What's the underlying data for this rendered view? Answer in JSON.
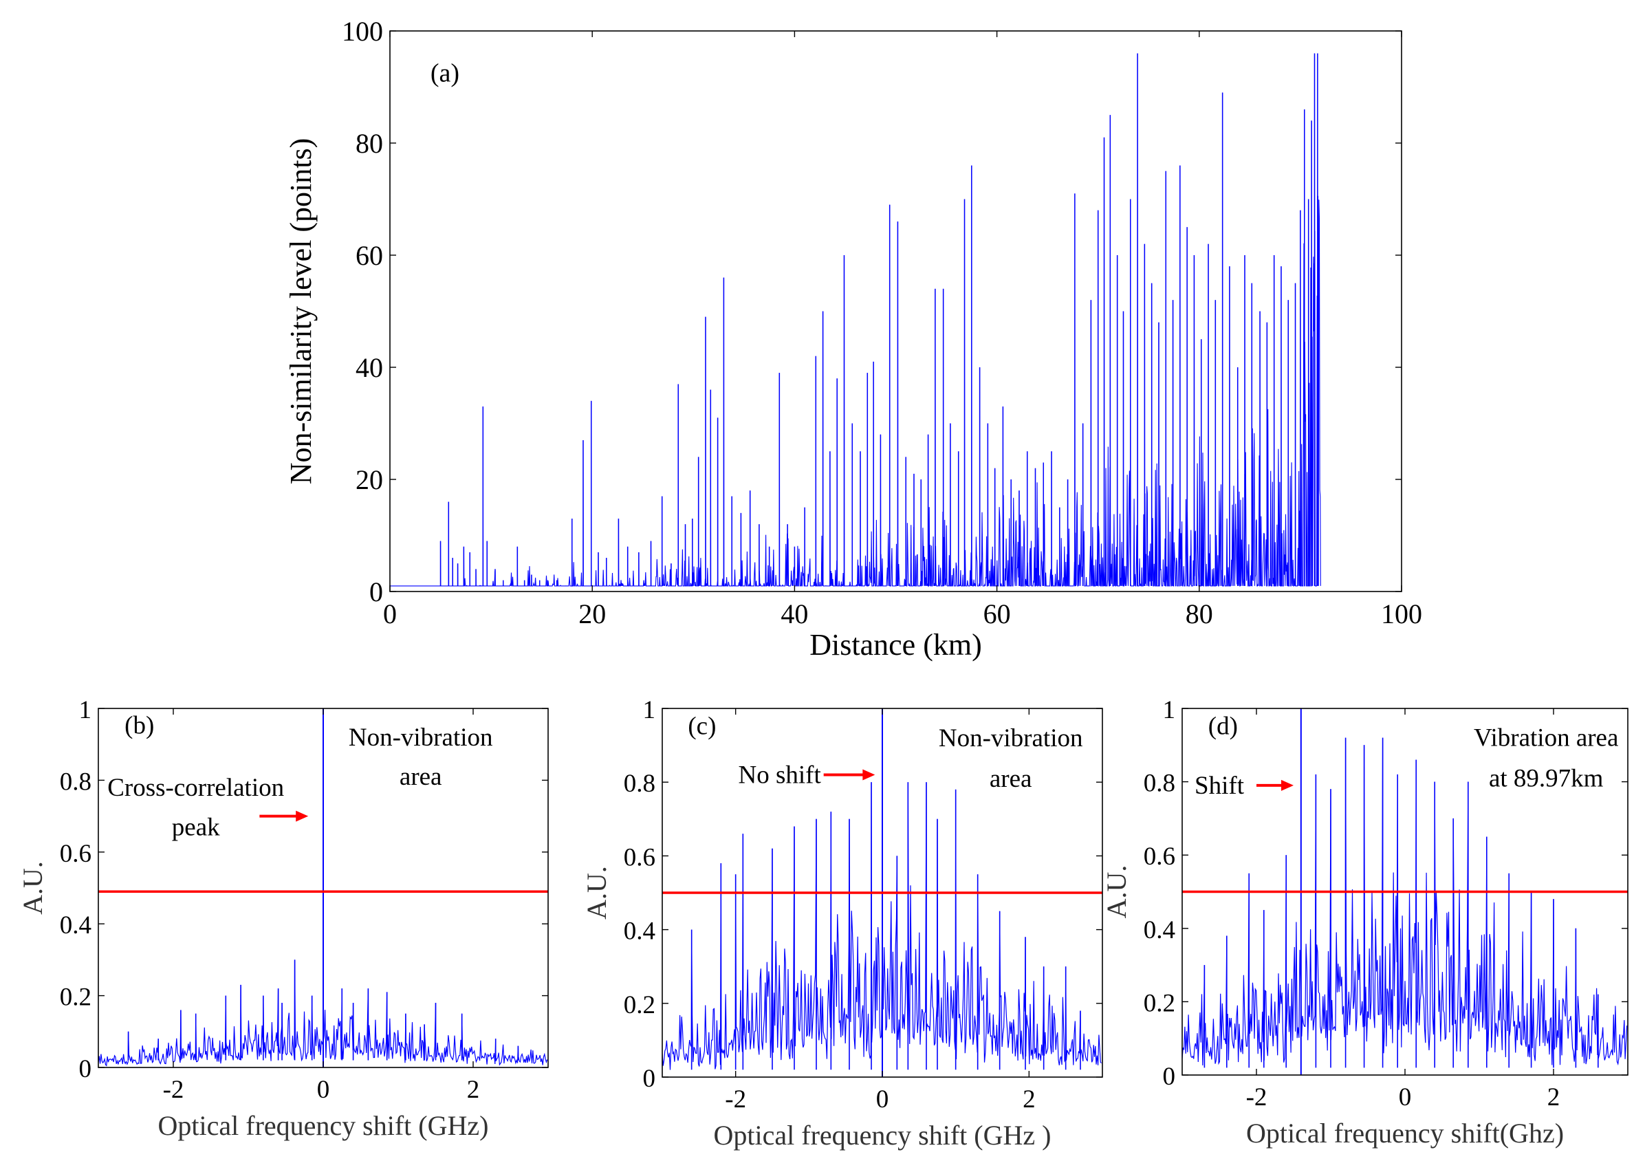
{
  "chart_data": [
    {
      "id": "a",
      "type": "line",
      "panel_label": "(a)",
      "xlabel": "Distance (km)",
      "ylabel": "Non-similarity level (points)",
      "xlim": [
        0,
        100
      ],
      "ylim": [
        0,
        100
      ],
      "xticks": [
        0,
        20,
        40,
        60,
        80,
        100
      ],
      "yticks": [
        0,
        20,
        40,
        60,
        80,
        100
      ],
      "grid": false,
      "baseline": 1,
      "data_end_km": 92,
      "series": [
        {
          "color": "#0000ff",
          "peaks": [
            {
              "x": 5.0,
              "y": 9
            },
            {
              "x": 5.8,
              "y": 16
            },
            {
              "x": 6.2,
              "y": 6
            },
            {
              "x": 6.7,
              "y": 5
            },
            {
              "x": 7.3,
              "y": 8
            },
            {
              "x": 7.9,
              "y": 7
            },
            {
              "x": 8.5,
              "y": 4
            },
            {
              "x": 9.2,
              "y": 33
            },
            {
              "x": 9.6,
              "y": 9
            },
            {
              "x": 10.4,
              "y": 4
            },
            {
              "x": 11.2,
              "y": 2
            },
            {
              "x": 12.6,
              "y": 8
            },
            {
              "x": 13.3,
              "y": 2
            },
            {
              "x": 14.0,
              "y": 3
            },
            {
              "x": 14.8,
              "y": 2
            },
            {
              "x": 15.6,
              "y": 2
            },
            {
              "x": 16.5,
              "y": 2
            },
            {
              "x": 18.0,
              "y": 13
            },
            {
              "x": 19.1,
              "y": 27
            },
            {
              "x": 19.9,
              "y": 34
            },
            {
              "x": 20.6,
              "y": 7
            },
            {
              "x": 21.4,
              "y": 6
            },
            {
              "x": 22.6,
              "y": 13
            },
            {
              "x": 23.5,
              "y": 8
            },
            {
              "x": 24.6,
              "y": 7
            },
            {
              "x": 25.8,
              "y": 9
            },
            {
              "x": 26.9,
              "y": 17
            },
            {
              "x": 27.8,
              "y": 5
            },
            {
              "x": 28.5,
              "y": 37
            },
            {
              "x": 29.2,
              "y": 12
            },
            {
              "x": 29.9,
              "y": 13
            },
            {
              "x": 30.5,
              "y": 24
            },
            {
              "x": 31.2,
              "y": 49
            },
            {
              "x": 31.7,
              "y": 36
            },
            {
              "x": 32.4,
              "y": 31
            },
            {
              "x": 33.0,
              "y": 56
            },
            {
              "x": 33.8,
              "y": 17
            },
            {
              "x": 34.7,
              "y": 14
            },
            {
              "x": 35.6,
              "y": 18
            },
            {
              "x": 36.5,
              "y": 12
            },
            {
              "x": 37.5,
              "y": 8
            },
            {
              "x": 38.5,
              "y": 39
            },
            {
              "x": 39.3,
              "y": 12
            },
            {
              "x": 40.0,
              "y": 8
            },
            {
              "x": 41.0,
              "y": 15
            },
            {
              "x": 42.1,
              "y": 42
            },
            {
              "x": 42.8,
              "y": 50
            },
            {
              "x": 43.5,
              "y": 25
            },
            {
              "x": 44.2,
              "y": 38
            },
            {
              "x": 44.9,
              "y": 60
            },
            {
              "x": 45.7,
              "y": 30
            },
            {
              "x": 46.5,
              "y": 25
            },
            {
              "x": 47.2,
              "y": 39
            },
            {
              "x": 47.8,
              "y": 41
            },
            {
              "x": 48.5,
              "y": 28
            },
            {
              "x": 49.4,
              "y": 69
            },
            {
              "x": 50.2,
              "y": 66
            },
            {
              "x": 51.0,
              "y": 24
            },
            {
              "x": 51.8,
              "y": 21
            },
            {
              "x": 52.5,
              "y": 20
            },
            {
              "x": 53.2,
              "y": 28
            },
            {
              "x": 53.9,
              "y": 54
            },
            {
              "x": 54.7,
              "y": 54
            },
            {
              "x": 55.4,
              "y": 30
            },
            {
              "x": 56.2,
              "y": 25
            },
            {
              "x": 56.8,
              "y": 70
            },
            {
              "x": 57.5,
              "y": 76
            },
            {
              "x": 58.3,
              "y": 40
            },
            {
              "x": 59.1,
              "y": 30
            },
            {
              "x": 59.8,
              "y": 22
            },
            {
              "x": 60.6,
              "y": 33
            },
            {
              "x": 61.4,
              "y": 20
            },
            {
              "x": 62.2,
              "y": 18
            },
            {
              "x": 63.0,
              "y": 25
            },
            {
              "x": 63.8,
              "y": 22
            },
            {
              "x": 64.6,
              "y": 23
            },
            {
              "x": 65.4,
              "y": 25
            },
            {
              "x": 66.2,
              "y": 15
            },
            {
              "x": 67.0,
              "y": 20
            },
            {
              "x": 67.7,
              "y": 71
            },
            {
              "x": 68.5,
              "y": 30
            },
            {
              "x": 69.3,
              "y": 52
            },
            {
              "x": 70.0,
              "y": 68
            },
            {
              "x": 70.6,
              "y": 81
            },
            {
              "x": 71.2,
              "y": 85
            },
            {
              "x": 71.9,
              "y": 60
            },
            {
              "x": 72.5,
              "y": 50
            },
            {
              "x": 73.2,
              "y": 70
            },
            {
              "x": 73.9,
              "y": 96
            },
            {
              "x": 74.6,
              "y": 62
            },
            {
              "x": 75.3,
              "y": 55
            },
            {
              "x": 76.0,
              "y": 48
            },
            {
              "x": 76.7,
              "y": 75
            },
            {
              "x": 77.4,
              "y": 52
            },
            {
              "x": 78.1,
              "y": 76
            },
            {
              "x": 78.8,
              "y": 65
            },
            {
              "x": 79.5,
              "y": 60
            },
            {
              "x": 80.2,
              "y": 45
            },
            {
              "x": 80.9,
              "y": 62
            },
            {
              "x": 81.6,
              "y": 52
            },
            {
              "x": 82.3,
              "y": 89
            },
            {
              "x": 83.0,
              "y": 58
            },
            {
              "x": 83.8,
              "y": 40
            },
            {
              "x": 84.5,
              "y": 60
            },
            {
              "x": 85.2,
              "y": 55
            },
            {
              "x": 86.0,
              "y": 50
            },
            {
              "x": 86.7,
              "y": 48
            },
            {
              "x": 87.4,
              "y": 60
            },
            {
              "x": 88.1,
              "y": 58
            },
            {
              "x": 88.8,
              "y": 52
            },
            {
              "x": 89.5,
              "y": 55
            },
            {
              "x": 90.0,
              "y": 68
            },
            {
              "x": 90.4,
              "y": 86
            },
            {
              "x": 90.8,
              "y": 70
            },
            {
              "x": 91.1,
              "y": 84
            },
            {
              "x": 91.4,
              "y": 96
            },
            {
              "x": 91.7,
              "y": 96
            }
          ]
        }
      ]
    },
    {
      "id": "b",
      "type": "line",
      "panel_label": "(b)",
      "xlabel": "Optical frequency shift (GHz)",
      "ylabel": "A.U.",
      "xlim": [
        -3,
        3
      ],
      "ylim": [
        0,
        1
      ],
      "xticks": [
        -2,
        0,
        2
      ],
      "yticks": [
        0,
        0.2,
        0.4,
        0.6,
        0.8,
        1
      ],
      "ytick_labels": [
        "0",
        "0.2",
        "0.4",
        "0.6",
        "0.8",
        "1"
      ],
      "grid": false,
      "threshold": 0.49,
      "threshold_color": "#ff0000",
      "correlation_peak": {
        "x": 0.0,
        "y": 1.0
      },
      "annotations": [
        {
          "text": "Non-vibration",
          "x": 1.3,
          "y": 0.92
        },
        {
          "text": "area",
          "x": 1.3,
          "y": 0.81
        },
        {
          "text": "Cross-correlation",
          "x": -1.7,
          "y": 0.78
        },
        {
          "text": "peak",
          "x": -1.7,
          "y": 0.67
        }
      ],
      "arrow": {
        "from_x": -0.85,
        "to_x": -0.2,
        "y": 0.7,
        "color": "#ff0000"
      },
      "series": [
        {
          "color": "#0000ff",
          "peaks": [
            {
              "x": -2.6,
              "y": 0.1
            },
            {
              "x": -2.2,
              "y": 0.08
            },
            {
              "x": -1.9,
              "y": 0.16
            },
            {
              "x": -1.7,
              "y": 0.15
            },
            {
              "x": -1.3,
              "y": 0.2
            },
            {
              "x": -1.1,
              "y": 0.23
            },
            {
              "x": -0.8,
              "y": 0.2
            },
            {
              "x": -0.6,
              "y": 0.22
            },
            {
              "x": -0.55,
              "y": 0.18
            },
            {
              "x": -0.38,
              "y": 0.3
            },
            {
              "x": -0.15,
              "y": 0.2
            },
            {
              "x": 0.25,
              "y": 0.22
            },
            {
              "x": 0.4,
              "y": 0.18
            },
            {
              "x": 0.6,
              "y": 0.22
            },
            {
              "x": 0.85,
              "y": 0.21
            },
            {
              "x": 1.1,
              "y": 0.15
            },
            {
              "x": 1.35,
              "y": 0.12
            },
            {
              "x": 1.5,
              "y": 0.18
            },
            {
              "x": 1.85,
              "y": 0.15
            },
            {
              "x": 2.3,
              "y": 0.08
            },
            {
              "x": 2.6,
              "y": 0.06
            }
          ]
        }
      ]
    },
    {
      "id": "c",
      "type": "line",
      "panel_label": "(c)",
      "xlabel": "Optical frequency shift (GHz )",
      "ylabel": "A.U.",
      "xlim": [
        -3,
        3
      ],
      "ylim": [
        0,
        1
      ],
      "xticks": [
        -2,
        0,
        2
      ],
      "yticks": [
        0,
        0.2,
        0.4,
        0.6,
        0.8,
        1
      ],
      "ytick_labels": [
        "0",
        "0.2",
        "0.4",
        "0.6",
        "0.8",
        "1"
      ],
      "grid": false,
      "threshold": 0.5,
      "threshold_color": "#ff0000",
      "correlation_peak": {
        "x": 0.0,
        "y": 1.0
      },
      "annotations": [
        {
          "text": "Non-vibration",
          "x": 1.75,
          "y": 0.92
        },
        {
          "text": "area",
          "x": 1.75,
          "y": 0.81
        },
        {
          "text": "No shift",
          "x": -1.4,
          "y": 0.82
        }
      ],
      "arrow": {
        "from_x": -0.8,
        "to_x": -0.1,
        "y": 0.82,
        "color": "#ff0000"
      },
      "series": [
        {
          "color": "#0000ff",
          "peaks": [
            {
              "x": -2.6,
              "y": 0.4
            },
            {
              "x": -2.2,
              "y": 0.58
            },
            {
              "x": -2.0,
              "y": 0.55
            },
            {
              "x": -1.9,
              "y": 0.66
            },
            {
              "x": -1.5,
              "y": 0.62
            },
            {
              "x": -1.2,
              "y": 0.68
            },
            {
              "x": -0.9,
              "y": 0.7
            },
            {
              "x": -0.7,
              "y": 0.72
            },
            {
              "x": -0.45,
              "y": 0.7
            },
            {
              "x": -0.15,
              "y": 0.8
            },
            {
              "x": 0.2,
              "y": 0.6
            },
            {
              "x": 0.35,
              "y": 0.8
            },
            {
              "x": 0.6,
              "y": 0.8
            },
            {
              "x": 0.75,
              "y": 0.7
            },
            {
              "x": 1.0,
              "y": 0.78
            },
            {
              "x": 1.3,
              "y": 0.55
            },
            {
              "x": 1.6,
              "y": 0.45
            },
            {
              "x": 1.95,
              "y": 0.38
            },
            {
              "x": 2.2,
              "y": 0.3
            },
            {
              "x": 2.5,
              "y": 0.3
            },
            {
              "x": 2.7,
              "y": 0.18
            }
          ]
        }
      ]
    },
    {
      "id": "d",
      "type": "line",
      "panel_label": "(d)",
      "xlabel": "Optical frequency shift(Ghz)",
      "ylabel": "A.U.",
      "xlim": [
        -3,
        3
      ],
      "ylim": [
        0,
        1
      ],
      "xticks": [
        -2,
        0,
        2
      ],
      "yticks": [
        0,
        0.2,
        0.4,
        0.6,
        0.8,
        1
      ],
      "ytick_labels": [
        "0",
        "0.2",
        "0.4",
        "0.6",
        "0.8",
        "1"
      ],
      "grid": false,
      "threshold": 0.5,
      "threshold_color": "#ff0000",
      "correlation_peak": {
        "x": -1.4,
        "y": 1.0
      },
      "annotations": [
        {
          "text": "Vibration area",
          "x": 1.9,
          "y": 0.92
        },
        {
          "text": "at 89.97km",
          "x": 1.9,
          "y": 0.81
        },
        {
          "text": "Shift",
          "x": -2.5,
          "y": 0.79
        }
      ],
      "arrow": {
        "from_x": -2.0,
        "to_x": -1.5,
        "y": 0.79,
        "color": "#ff0000"
      },
      "series": [
        {
          "color": "#0000ff",
          "peaks": [
            {
              "x": -2.7,
              "y": 0.3
            },
            {
              "x": -2.4,
              "y": 0.38
            },
            {
              "x": -2.1,
              "y": 0.55
            },
            {
              "x": -1.9,
              "y": 0.45
            },
            {
              "x": -1.6,
              "y": 0.6
            },
            {
              "x": -1.2,
              "y": 0.82
            },
            {
              "x": -1.0,
              "y": 0.78
            },
            {
              "x": -0.8,
              "y": 0.92
            },
            {
              "x": -0.55,
              "y": 0.9
            },
            {
              "x": -0.3,
              "y": 0.92
            },
            {
              "x": -0.1,
              "y": 0.82
            },
            {
              "x": 0.15,
              "y": 0.86
            },
            {
              "x": 0.4,
              "y": 0.8
            },
            {
              "x": 0.65,
              "y": 0.7
            },
            {
              "x": 0.85,
              "y": 0.8
            },
            {
              "x": 1.1,
              "y": 0.65
            },
            {
              "x": 1.4,
              "y": 0.55
            },
            {
              "x": 1.7,
              "y": 0.5
            },
            {
              "x": 2.0,
              "y": 0.48
            },
            {
              "x": 2.3,
              "y": 0.4
            },
            {
              "x": 2.6,
              "y": 0.22
            }
          ]
        }
      ]
    }
  ]
}
